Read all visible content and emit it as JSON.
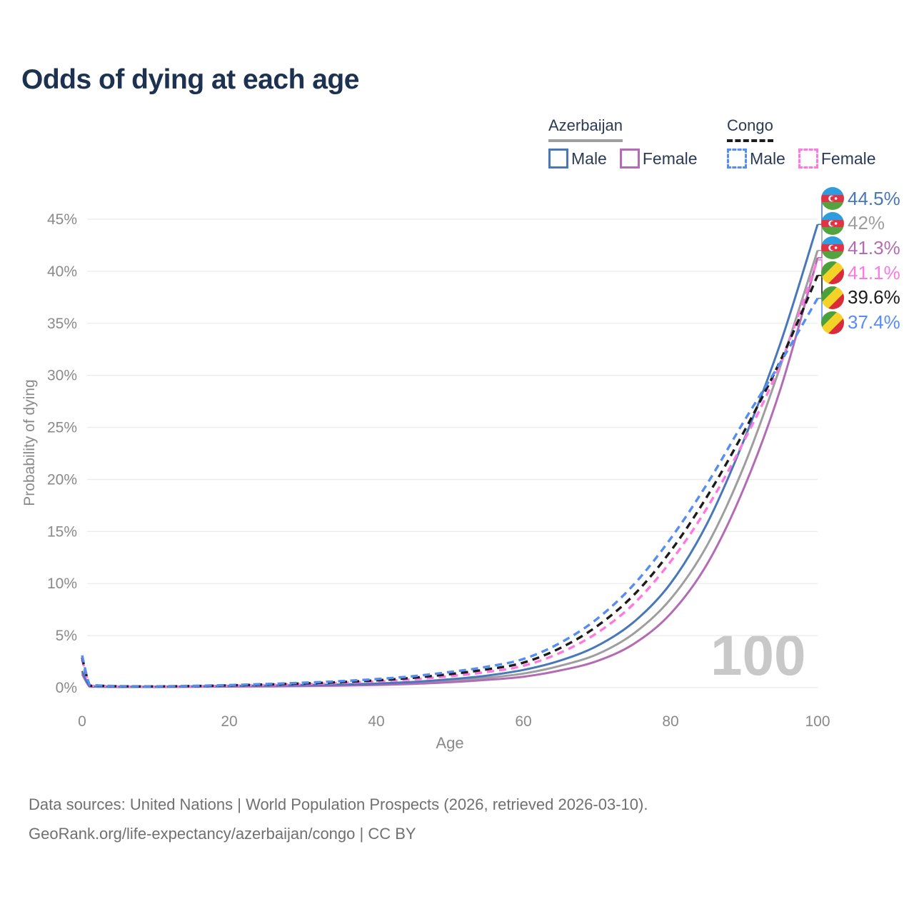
{
  "title": "Odds of dying at each age",
  "watermark": "100",
  "legend": {
    "groups": [
      {
        "name": "Azerbaijan",
        "style": "solid",
        "underline_color": "#9e9e9e",
        "items": [
          {
            "label": "Male",
            "color": "#4878ba"
          },
          {
            "label": "Female",
            "color": "#b36cb4"
          }
        ]
      },
      {
        "name": "Congo",
        "style": "dashed",
        "underline_color": "#1c1c1c",
        "items": [
          {
            "label": "Male",
            "color": "#568df2"
          },
          {
            "label": "Female",
            "color": "#ff78e2"
          }
        ]
      }
    ]
  },
  "chart_data": {
    "type": "line",
    "title": "Odds of dying at each age",
    "xlabel": "Age",
    "ylabel": "Probability of dying",
    "xlim": [
      0,
      100
    ],
    "ylim_percent": [
      0,
      45
    ],
    "grid": true,
    "x_ticks": [
      "0",
      "20",
      "40",
      "60",
      "80",
      "100"
    ],
    "x_tick_values": [
      0,
      20,
      40,
      60,
      80,
      100
    ],
    "y_ticks": [
      "0%",
      "5%",
      "10%",
      "15%",
      "20%",
      "25%",
      "30%",
      "35%",
      "40%",
      "45%"
    ],
    "y_tick_values": [
      0,
      5,
      10,
      15,
      20,
      25,
      30,
      35,
      40,
      45
    ],
    "ages": [
      0,
      1,
      2,
      5,
      10,
      15,
      20,
      25,
      30,
      35,
      40,
      45,
      50,
      55,
      60,
      65,
      70,
      75,
      80,
      85,
      90,
      95,
      100
    ],
    "series": [
      {
        "name": "azerbaijan-both",
        "country": "Azerbaijan",
        "sex": "Both",
        "color": "#9e9e9e",
        "dashed": false,
        "values": [
          1.45,
          0.13,
          0.1,
          0.07,
          0.07,
          0.1,
          0.13,
          0.16,
          0.2,
          0.24,
          0.32,
          0.45,
          0.65,
          0.95,
          1.35,
          2.1,
          3.2,
          5.2,
          8.5,
          13.7,
          21.3,
          31.0,
          42.0
        ]
      },
      {
        "name": "azerbaijan-female",
        "country": "Azerbaijan",
        "sex": "Female",
        "color": "#b36cb4",
        "dashed": false,
        "values": [
          1.3,
          0.11,
          0.09,
          0.06,
          0.06,
          0.08,
          0.1,
          0.12,
          0.15,
          0.19,
          0.26,
          0.36,
          0.52,
          0.75,
          1.05,
          1.65,
          2.55,
          4.2,
          7.1,
          11.9,
          19.2,
          28.8,
          41.3
        ]
      },
      {
        "name": "azerbaijan-male",
        "country": "Azerbaijan",
        "sex": "Male",
        "color": "#4878ba",
        "dashed": false,
        "values": [
          1.6,
          0.15,
          0.12,
          0.08,
          0.08,
          0.12,
          0.16,
          0.2,
          0.25,
          0.3,
          0.4,
          0.55,
          0.8,
          1.15,
          1.7,
          2.6,
          4.0,
          6.3,
          10.0,
          15.8,
          23.8,
          33.2,
          44.5
        ]
      },
      {
        "name": "congo-female",
        "country": "Congo",
        "sex": "Female",
        "color": "#ff78e2",
        "dashed": true,
        "values": [
          2.7,
          0.26,
          0.19,
          0.12,
          0.11,
          0.13,
          0.19,
          0.26,
          0.34,
          0.45,
          0.6,
          0.8,
          1.1,
          1.5,
          2.1,
          3.35,
          5.25,
          8.05,
          12.1,
          17.3,
          23.7,
          31.2,
          41.1
        ]
      },
      {
        "name": "congo-both",
        "country": "Congo",
        "sex": "Both",
        "color": "#1c1c1c",
        "dashed": true,
        "values": [
          2.9,
          0.28,
          0.2,
          0.13,
          0.12,
          0.15,
          0.22,
          0.3,
          0.4,
          0.53,
          0.7,
          0.95,
          1.3,
          1.75,
          2.4,
          3.8,
          5.9,
          8.9,
          13.1,
          18.4,
          24.6,
          31.5,
          39.6
        ]
      },
      {
        "name": "congo-male",
        "country": "Congo",
        "sex": "Male",
        "color": "#568df2",
        "dashed": true,
        "values": [
          3.1,
          0.3,
          0.22,
          0.15,
          0.13,
          0.17,
          0.25,
          0.35,
          0.47,
          0.62,
          0.82,
          1.1,
          1.5,
          2.0,
          2.75,
          4.3,
          6.6,
          9.9,
          14.3,
          19.6,
          25.6,
          31.3,
          37.4
        ]
      }
    ],
    "end_labels": [
      {
        "text": "44.5%",
        "value": 44.5,
        "color": "#4878ba",
        "flag": "azerbaijan",
        "series": "azerbaijan-male"
      },
      {
        "text": "42%",
        "value": 42.0,
        "color": "#9e9e9e",
        "flag": "azerbaijan",
        "series": "azerbaijan-both"
      },
      {
        "text": "41.3%",
        "value": 41.3,
        "color": "#b36cb4",
        "flag": "azerbaijan",
        "series": "azerbaijan-female"
      },
      {
        "text": "41.1%",
        "value": 41.1,
        "color": "#ff78e2",
        "flag": "congo",
        "series": "congo-female"
      },
      {
        "text": "39.6%",
        "value": 39.6,
        "color": "#1c1c1c",
        "flag": "congo",
        "series": "congo-both"
      },
      {
        "text": "37.4%",
        "value": 37.4,
        "color": "#568df2",
        "flag": "congo",
        "series": "congo-male"
      }
    ],
    "legend_position": "top-right"
  },
  "footer": {
    "line1": "Data sources: United Nations | World Population Prospects (2026, retrieved 2026-03-10).",
    "line2": "GeoRank.org/life-expectancy/azerbaijan/congo | CC BY"
  }
}
